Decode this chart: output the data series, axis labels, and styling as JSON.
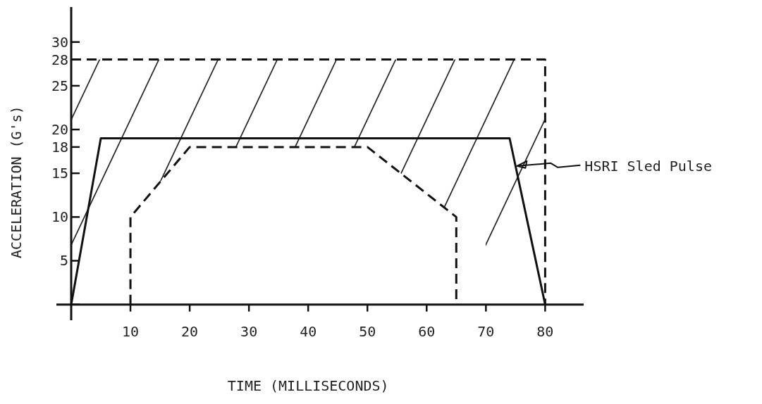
{
  "chart_data": {
    "type": "line",
    "xlabel": "TIME (MILLISECONDS)",
    "ylabel": "ACCELERATION (G's)",
    "xlim": [
      -2.5,
      86.5
    ],
    "ylim": [
      -1.8,
      34
    ],
    "xticks": [
      10,
      20,
      30,
      40,
      50,
      60,
      70,
      80
    ],
    "yticks": [
      {
        "value": 0,
        "label": null
      },
      5,
      10,
      15,
      18,
      20,
      25,
      28,
      30
    ],
    "series": [
      {
        "color": "#111111",
        "line_style": "dashed",
        "x": [
          0,
          10,
          10,
          20,
          50,
          65,
          65,
          80,
          80
        ],
        "values": [
          28,
          28,
          28,
          28,
          28,
          28,
          28,
          28,
          0
        ],
        "lower": [
          0,
          0,
          10,
          18,
          18,
          10,
          0,
          0,
          0
        ],
        "upper": [
          28,
          28,
          28,
          28,
          28,
          28,
          28,
          28,
          0
        ]
      },
      {
        "color": "#111111",
        "line_style": "dashed",
        "x": [
          10,
          10,
          20,
          50,
          65,
          65
        ],
        "values": [
          0,
          10,
          18,
          18,
          10,
          0
        ]
      },
      {
        "color": "#111111",
        "line_style": "solid",
        "x": [
          0,
          5,
          74,
          80
        ],
        "values": [
          0,
          19,
          19,
          0
        ]
      }
    ],
    "annotations": [
      "HSRI Sled Pulse"
    ]
  }
}
